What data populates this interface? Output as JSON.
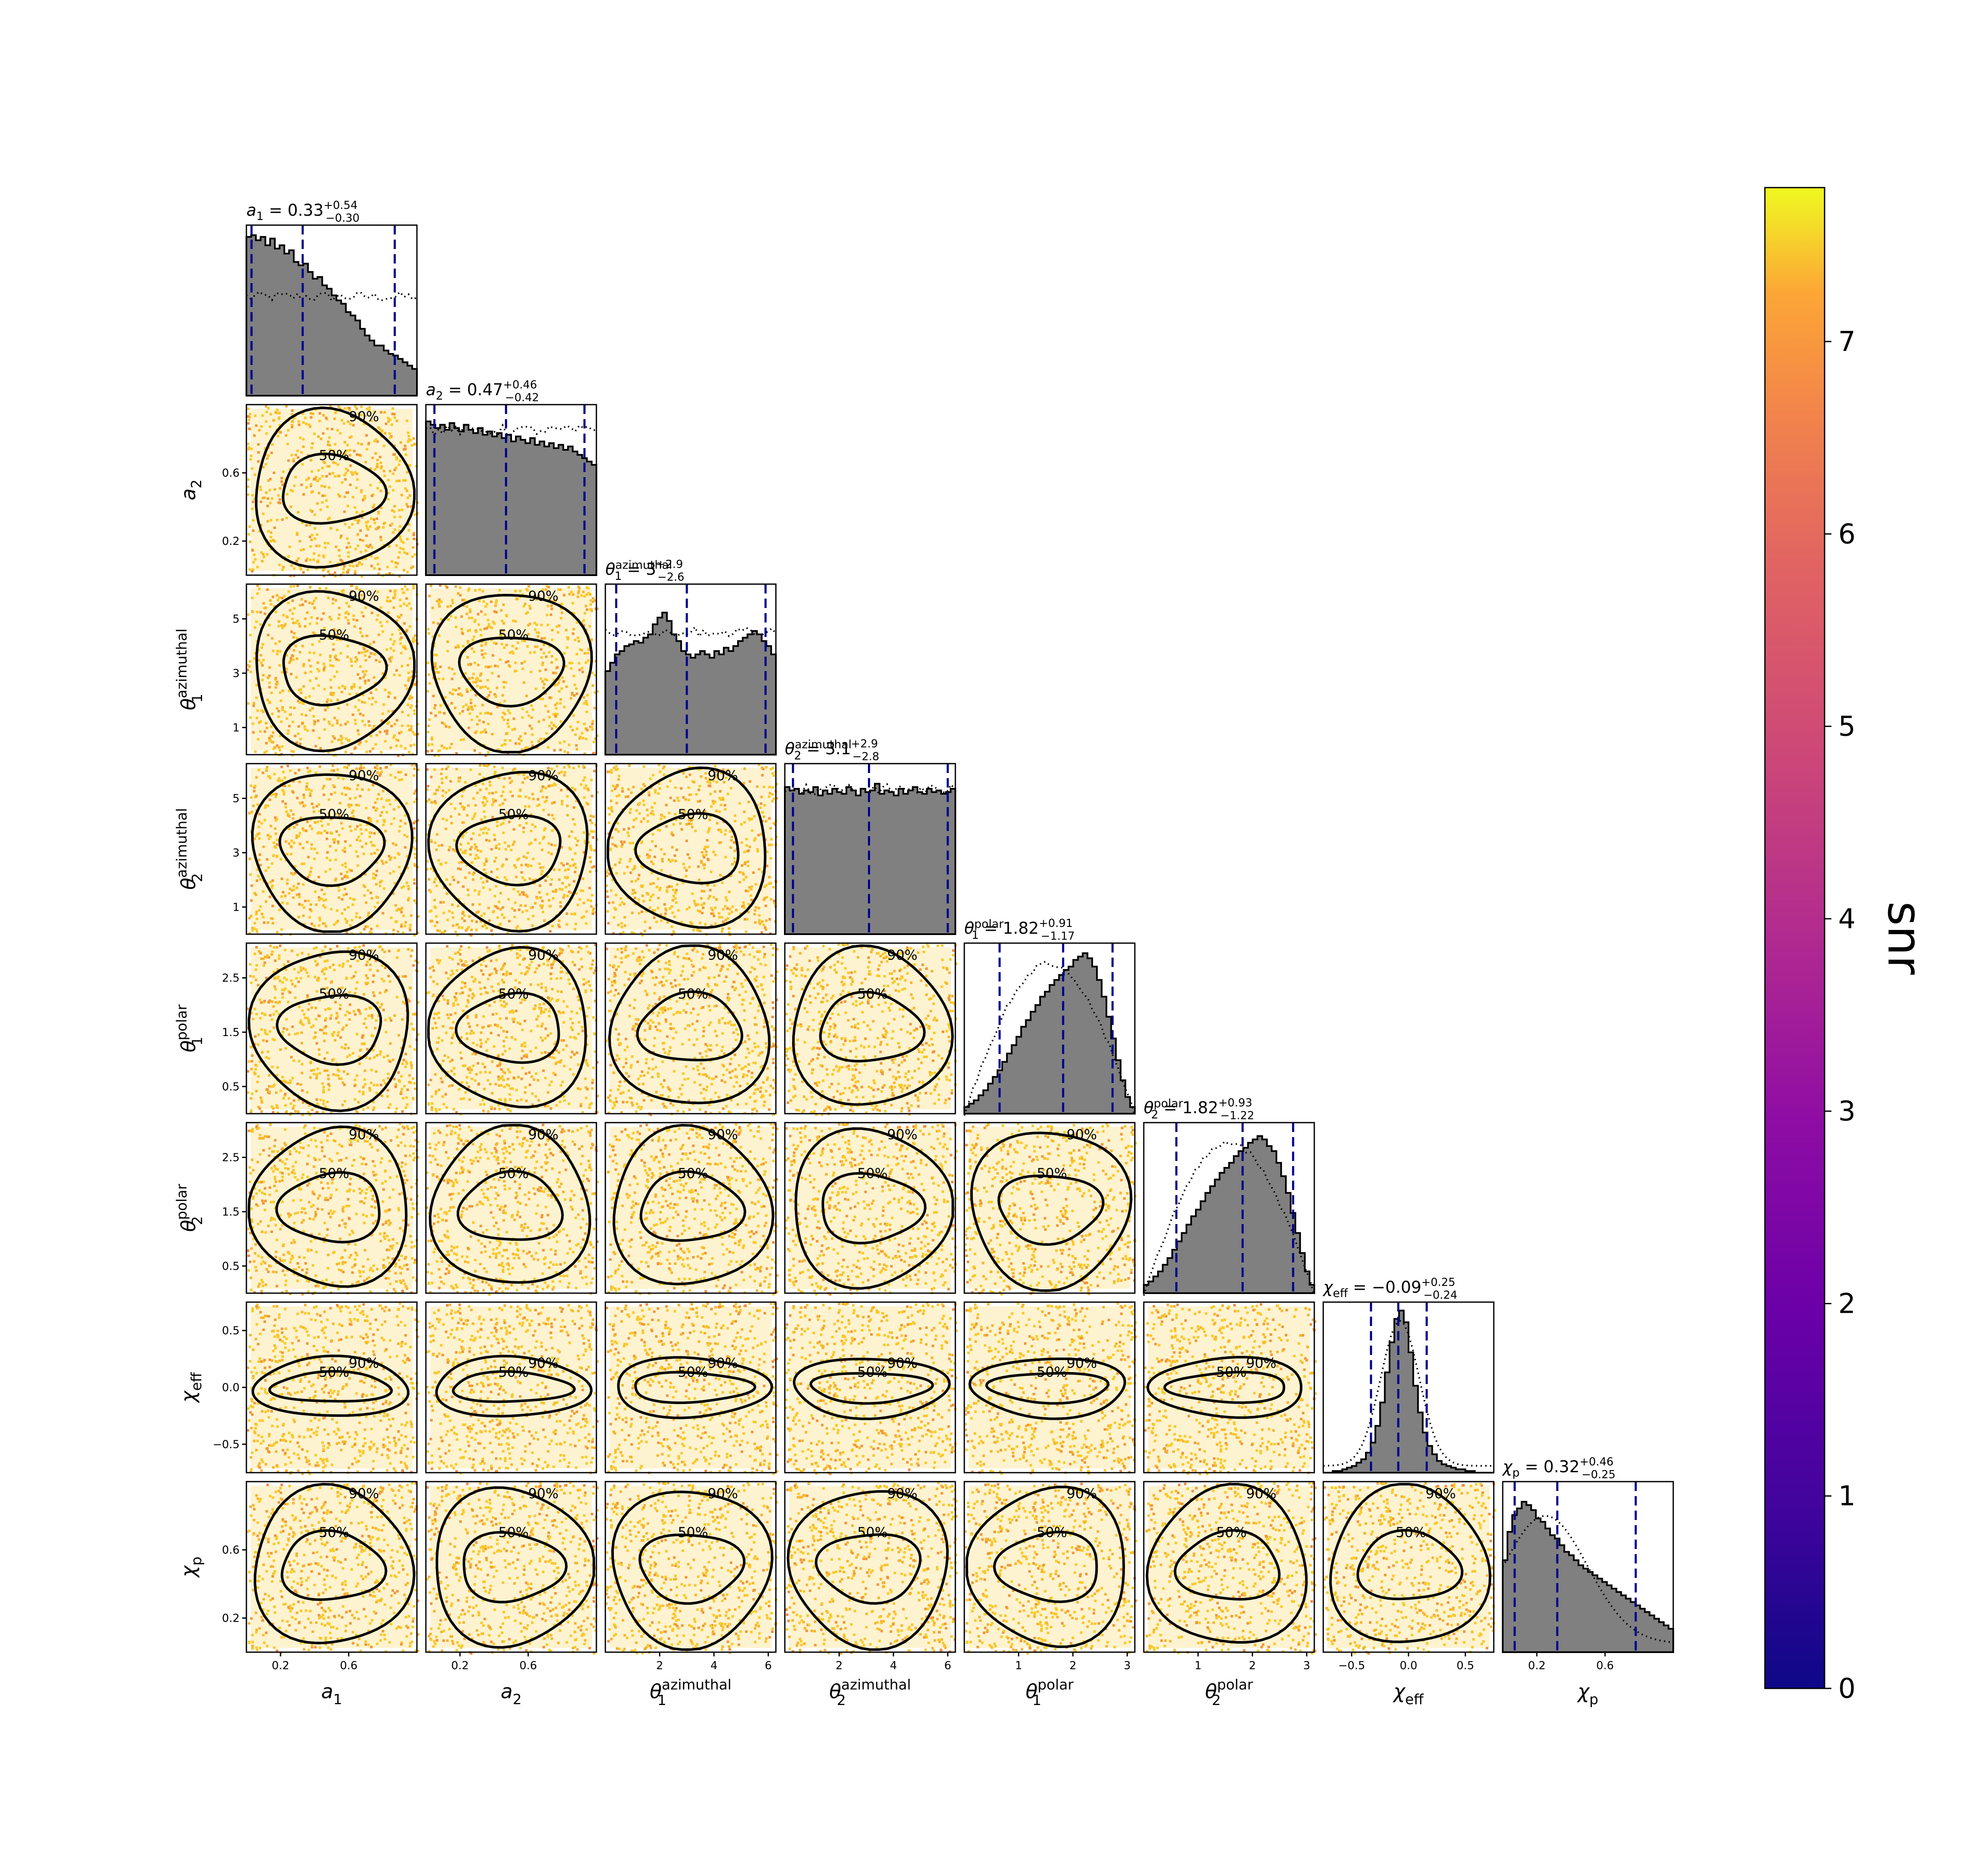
{
  "figure": {
    "type": "corner-plot"
  },
  "chart_data": {
    "type": "scatter",
    "params": [
      {
        "key": "a1",
        "label": "a",
        "sub": "1",
        "sup": "",
        "range": [
          0,
          1
        ],
        "ticks": [
          0.2,
          0.6
        ],
        "title_value": "0.33",
        "title_plus": "+0.54",
        "title_minus": "−0.30",
        "median": 0.33,
        "lo": 0.03,
        "hi": 0.87
      },
      {
        "key": "a2",
        "label": "a",
        "sub": "2",
        "sup": "",
        "range": [
          0,
          1
        ],
        "ticks": [
          0.2,
          0.6
        ],
        "title_value": "0.47",
        "title_plus": "+0.46",
        "title_minus": "−0.42",
        "median": 0.47,
        "lo": 0.05,
        "hi": 0.93
      },
      {
        "key": "theta1_az",
        "label": "θ",
        "sub": "1",
        "sup": "azimuthal",
        "range": [
          0,
          6.28
        ],
        "ticks": [
          1,
          3,
          5
        ],
        "xticks": [
          2,
          4,
          6
        ],
        "title_value": "3",
        "title_plus": "+2.9",
        "title_minus": "−2.6",
        "median": 3.0,
        "lo": 0.4,
        "hi": 5.9
      },
      {
        "key": "theta2_az",
        "label": "θ",
        "sub": "2",
        "sup": "azimuthal",
        "range": [
          0,
          6.28
        ],
        "ticks": [
          1,
          3,
          5
        ],
        "xticks": [
          2,
          4,
          6
        ],
        "title_value": "3.1",
        "title_plus": "+2.9",
        "title_minus": "−2.8",
        "median": 3.1,
        "lo": 0.3,
        "hi": 6.0
      },
      {
        "key": "theta1_pol",
        "label": "θ",
        "sub": "1",
        "sup": "polar",
        "range": [
          0,
          3.14
        ],
        "ticks": [
          0.5,
          1.5,
          2.5
        ],
        "xticks": [
          1,
          2,
          3
        ],
        "title_value": "1.82",
        "title_plus": "+0.91",
        "title_minus": "−1.17",
        "median": 1.82,
        "lo": 0.65,
        "hi": 2.73
      },
      {
        "key": "theta2_pol",
        "label": "θ",
        "sub": "2",
        "sup": "polar",
        "range": [
          0,
          3.14
        ],
        "ticks": [
          0.5,
          1.5,
          2.5
        ],
        "xticks": [
          1,
          2,
          3
        ],
        "title_value": "1.82",
        "title_plus": "+0.93",
        "title_minus": "−1.22",
        "median": 1.82,
        "lo": 0.6,
        "hi": 2.75
      },
      {
        "key": "chi_eff",
        "label": "χ",
        "sub": "eff",
        "sup": "",
        "range": [
          -0.75,
          0.75
        ],
        "ticks": [
          -0.5,
          0.0,
          0.5
        ],
        "xticks": [
          -0.5,
          0.0,
          0.5
        ],
        "tick_labels": [
          "−0.5",
          "0.0",
          "0.5"
        ],
        "title_value": "−0.09",
        "title_plus": "+0.25",
        "title_minus": "−0.24",
        "median": -0.09,
        "lo": -0.33,
        "hi": 0.16
      },
      {
        "key": "chi_p",
        "label": "χ",
        "sub": "p",
        "sup": "",
        "range": [
          0,
          1
        ],
        "ticks": [
          0.2,
          0.6
        ],
        "xticks": [
          0.2,
          0.6
        ],
        "title_value": "0.32",
        "title_plus": "+0.46",
        "title_minus": "−0.25",
        "median": 0.32,
        "lo": 0.07,
        "hi": 0.78
      }
    ],
    "histograms": [
      {
        "param": "a1",
        "posterior_shape": "decreasing",
        "prior_shape": "flat",
        "posterior": [
          0.95,
          0.96,
          0.93,
          0.95,
          0.9,
          0.94,
          0.88,
          0.9,
          0.85,
          0.87,
          0.8,
          0.78,
          0.79,
          0.74,
          0.7,
          0.71,
          0.66,
          0.64,
          0.6,
          0.57,
          0.55,
          0.5,
          0.48,
          0.45,
          0.4,
          0.36,
          0.33,
          0.3,
          0.3,
          0.27,
          0.25,
          0.24,
          0.22,
          0.2,
          0.18,
          0.16
        ]
      },
      {
        "param": "a2",
        "posterior_shape": "near-flat, slightly decreasing",
        "prior_shape": "flat",
        "posterior": [
          0.92,
          0.9,
          0.88,
          0.9,
          0.87,
          0.91,
          0.88,
          0.86,
          0.9,
          0.87,
          0.85,
          0.88,
          0.84,
          0.86,
          0.83,
          0.85,
          0.82,
          0.84,
          0.8,
          0.83,
          0.81,
          0.79,
          0.82,
          0.78,
          0.8,
          0.77,
          0.79,
          0.76,
          0.78,
          0.75,
          0.77,
          0.74,
          0.72,
          0.7,
          0.68,
          0.66
        ]
      },
      {
        "param": "theta1_az",
        "posterior_shape": "broad, peaks near 2 and 5.5",
        "prior_shape": "flat",
        "posterior": [
          0.5,
          0.55,
          0.6,
          0.62,
          0.65,
          0.66,
          0.68,
          0.67,
          0.7,
          0.72,
          0.78,
          0.82,
          0.85,
          0.8,
          0.72,
          0.68,
          0.62,
          0.6,
          0.58,
          0.6,
          0.62,
          0.6,
          0.58,
          0.62,
          0.6,
          0.64,
          0.62,
          0.65,
          0.68,
          0.7,
          0.72,
          0.74,
          0.72,
          0.68,
          0.65,
          0.6
        ]
      },
      {
        "param": "theta2_az",
        "posterior_shape": "flat",
        "prior_shape": "flat",
        "posterior": [
          0.88,
          0.86,
          0.87,
          0.84,
          0.86,
          0.85,
          0.88,
          0.83,
          0.86,
          0.84,
          0.87,
          0.85,
          0.84,
          0.88,
          0.86,
          0.83,
          0.87,
          0.85,
          0.86,
          0.9,
          0.84,
          0.86,
          0.85,
          0.83,
          0.87,
          0.84,
          0.86,
          0.88,
          0.85,
          0.84,
          0.87,
          0.85,
          0.86,
          0.84,
          0.85,
          0.87
        ]
      },
      {
        "param": "theta1_pol",
        "posterior_shape": "peak near 2.2",
        "prior_shape": "sine",
        "posterior": [
          0.04,
          0.06,
          0.08,
          0.11,
          0.14,
          0.18,
          0.22,
          0.26,
          0.31,
          0.36,
          0.41,
          0.46,
          0.52,
          0.56,
          0.61,
          0.65,
          0.7,
          0.73,
          0.77,
          0.8,
          0.83,
          0.86,
          0.88,
          0.92,
          0.94,
          0.96,
          0.93,
          0.88,
          0.8,
          0.7,
          0.58,
          0.45,
          0.32,
          0.2,
          0.1,
          0.04
        ]
      },
      {
        "param": "theta2_pol",
        "posterior_shape": "peak near 2.2",
        "prior_shape": "sine",
        "posterior": [
          0.05,
          0.07,
          0.1,
          0.13,
          0.17,
          0.21,
          0.26,
          0.31,
          0.36,
          0.41,
          0.46,
          0.5,
          0.55,
          0.6,
          0.64,
          0.68,
          0.72,
          0.75,
          0.78,
          0.82,
          0.85,
          0.87,
          0.9,
          0.92,
          0.94,
          0.92,
          0.88,
          0.85,
          0.78,
          0.7,
          0.6,
          0.48,
          0.36,
          0.24,
          0.13,
          0.05
        ]
      },
      {
        "param": "chi_eff",
        "posterior_shape": "narrow peak near -0.05",
        "prior_shape": "broad",
        "posterior": [
          0.0,
          0.0,
          0.01,
          0.01,
          0.02,
          0.03,
          0.04,
          0.06,
          0.08,
          0.12,
          0.18,
          0.28,
          0.42,
          0.6,
          0.78,
          0.92,
          0.97,
          0.9,
          0.72,
          0.52,
          0.36,
          0.24,
          0.16,
          0.11,
          0.07,
          0.05,
          0.04,
          0.03,
          0.02,
          0.02,
          0.01,
          0.01,
          0.0,
          0.0,
          0.0,
          0.0
        ]
      },
      {
        "param": "chi_p",
        "posterior_shape": "peak near 0.2",
        "prior_shape": "broad",
        "posterior": [
          0.55,
          0.72,
          0.82,
          0.86,
          0.9,
          0.88,
          0.85,
          0.8,
          0.78,
          0.74,
          0.7,
          0.68,
          0.64,
          0.6,
          0.58,
          0.55,
          0.52,
          0.5,
          0.48,
          0.46,
          0.44,
          0.42,
          0.4,
          0.38,
          0.36,
          0.34,
          0.32,
          0.3,
          0.28,
          0.26,
          0.24,
          0.22,
          0.2,
          0.18,
          0.16,
          0.14
        ]
      }
    ],
    "contour_levels": [
      "50%",
      "90%"
    ],
    "scatter_color_by": "snr",
    "colorbar": {
      "label": "snr",
      "range": [
        0,
        7.8
      ],
      "ticks": [
        0,
        1,
        2,
        3,
        4,
        5,
        6,
        7
      ],
      "colormap": "plasma"
    },
    "grid": false
  },
  "colors": {
    "hist_fill": "#808080",
    "median_line": "#00008b",
    "contour": "#000000",
    "scatter_hi": "#f9c92a",
    "scatter_lo": "#ef8a3e"
  }
}
